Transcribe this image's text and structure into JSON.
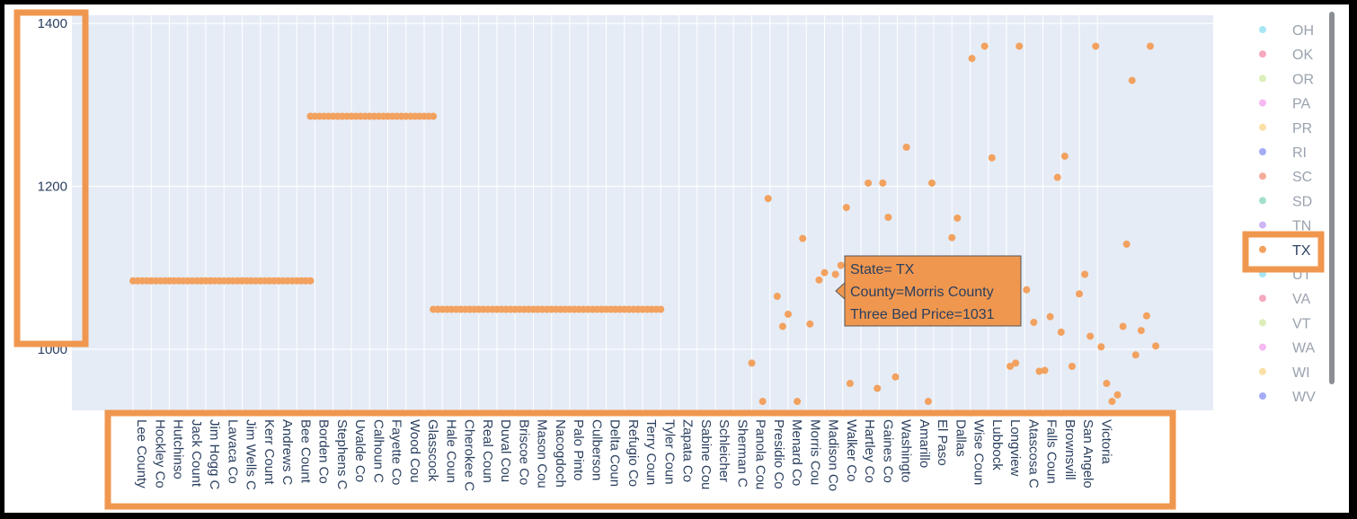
{
  "chart_data": {
    "type": "scatter",
    "ylim": [
      925,
      1410
    ],
    "yticks": [
      1000,
      1200,
      1400
    ],
    "xlabel": "",
    "ylabel": "",
    "title": "",
    "categories": [
      "Lee County",
      "Hockley County",
      "Hutchinson County",
      "Jack County",
      "Jim Hogg County",
      "Lavaca County",
      "Jim Wells County",
      "Kerr County",
      "Andrews County",
      "Bee County",
      "Borden County",
      "Stephens County",
      "Uvalde County",
      "Calhoun County",
      "Fayette County",
      "Wood County",
      "Glasscock County",
      "Hale County",
      "Cherokee County",
      "Real County",
      "Duval County",
      "Briscoe County",
      "Mason County",
      "Nacogdoches County",
      "Palo Pinto County",
      "Culberson County",
      "Delta County",
      "Refugio County",
      "Terry County",
      "Tyler County",
      "Zapata County",
      "Sabine County",
      "Schleicher County",
      "Sherman County",
      "Panola County",
      "Presidio County",
      "Menard County",
      "Morris County",
      "Madison County",
      "Walker County",
      "Hartley County",
      "Gaines County",
      "Washington County",
      "Amarillo",
      "El Paso",
      "Dallas",
      "Wise County",
      "Lubbock",
      "Longview",
      "Atascosa County",
      "Falls County",
      "Brownsville",
      "San Angelo",
      "Victoria"
    ],
    "category_display": [
      "Lee County",
      "Hockley Co",
      "Hutchinso",
      "Jack Count",
      "Jim Hogg C",
      "Lavaca Co",
      "Jim Wells C",
      "Kerr Count",
      "Andrews C",
      "Bee Count",
      "Borden Co",
      "Stephens C",
      "Uvalde Co",
      "Calhoun C",
      "Fayette Co",
      "Wood Cou",
      "Glasscock",
      "Hale Coun",
      "Cherokee C",
      "Real Coun",
      "Duval Cou",
      "Briscoe Co",
      "Mason Cou",
      "Nacogdoch",
      "Palo Pinto",
      "Culberson",
      "Delta Coun",
      "Refugio Co",
      "Terry Coun",
      "Tyler Coun",
      "Zapata Co",
      "Sabine Cou",
      "Schleicher",
      "Sherman C",
      "Panola Cou",
      "Presidio Co",
      "Menard Co",
      "Morris Cou",
      "Madison Co",
      "Walker Co",
      "Hartley Co",
      "Gaines Co",
      "Washingto",
      "Amarillo",
      "El Paso",
      "Dallas",
      "Wise Coun",
      "Lubbock",
      "Longview",
      "Atascosa C",
      "Falls Coun",
      "Brownsvill",
      "San Angelo",
      "Victoria"
    ],
    "hover_label": {
      "state_line": "State= TX",
      "county_line": "County=Morris County",
      "price_line": "Three Bed Price=1031"
    },
    "series": [
      {
        "name": "TX",
        "color": "#f2a15f",
        "segments": [
          {
            "x_start": 0,
            "x_end": 9.75,
            "y": 1084
          },
          {
            "x_start": 9.75,
            "x_end": 16.5,
            "y": 1286
          },
          {
            "x_start": 16.5,
            "x_end": 29.0,
            "y": 1049
          }
        ],
        "points": [
          [
            34.0,
            983
          ],
          [
            34.6,
            936
          ],
          [
            34.9,
            1185
          ],
          [
            35.4,
            1065
          ],
          [
            35.7,
            1028
          ],
          [
            36.0,
            1043
          ],
          [
            36.5,
            936
          ],
          [
            36.8,
            1136
          ],
          [
            37.2,
            1031
          ],
          [
            37.7,
            1085
          ],
          [
            38.0,
            1094
          ],
          [
            38.6,
            1092
          ],
          [
            38.9,
            1103
          ],
          [
            39.2,
            1174
          ],
          [
            39.4,
            958
          ],
          [
            40.4,
            1204
          ],
          [
            40.9,
            952
          ],
          [
            41.2,
            1204
          ],
          [
            41.5,
            1162
          ],
          [
            41.9,
            966
          ],
          [
            42.5,
            1248
          ],
          [
            43.7,
            936
          ],
          [
            43.9,
            1204
          ],
          [
            44.1,
            1097
          ],
          [
            45.0,
            1137
          ],
          [
            45.3,
            1161
          ],
          [
            46.1,
            1357
          ],
          [
            46.8,
            1372
          ],
          [
            47.2,
            1235
          ],
          [
            47.6,
            1099
          ],
          [
            48.2,
            979
          ],
          [
            48.5,
            983
          ],
          [
            48.7,
            1372
          ],
          [
            49.1,
            1073
          ],
          [
            49.5,
            1033
          ],
          [
            49.8,
            973
          ],
          [
            50.1,
            974
          ],
          [
            50.4,
            1040
          ],
          [
            50.8,
            1211
          ],
          [
            51.0,
            1021
          ],
          [
            51.2,
            1237
          ],
          [
            51.6,
            979
          ],
          [
            52.0,
            1068
          ],
          [
            52.3,
            1092
          ],
          [
            52.6,
            1016
          ],
          [
            52.9,
            1372
          ],
          [
            53.2,
            1003
          ],
          [
            53.5,
            958
          ],
          [
            53.8,
            936
          ],
          [
            54.1,
            944
          ],
          [
            54.4,
            1028
          ],
          [
            54.6,
            1129
          ],
          [
            54.9,
            1330
          ],
          [
            55.1,
            993
          ],
          [
            55.4,
            1023
          ],
          [
            55.7,
            1041
          ],
          [
            55.9,
            1372
          ],
          [
            56.2,
            1004
          ]
        ]
      }
    ],
    "legend": {
      "placement": "right",
      "items": [
        {
          "label": "OH",
          "color": "#a8e6f5",
          "active": false
        },
        {
          "label": "OK",
          "color": "#f5a8be",
          "active": false
        },
        {
          "label": "OR",
          "color": "#dcefb8",
          "active": false
        },
        {
          "label": "PA",
          "color": "#f6b8f2",
          "active": false
        },
        {
          "label": "PR",
          "color": "#fbe0a6",
          "active": false
        },
        {
          "label": "RI",
          "color": "#a3acf4",
          "active": false
        },
        {
          "label": "SC",
          "color": "#f4ab9c",
          "active": false
        },
        {
          "label": "SD",
          "color": "#a4e0cb",
          "active": false
        },
        {
          "label": "TN",
          "color": "#ceb6f6",
          "active": false
        },
        {
          "label": "TX",
          "color": "#f2a15f",
          "active": true
        },
        {
          "label": "UT",
          "color": "#a8e6f5",
          "active": false
        },
        {
          "label": "VA",
          "color": "#f5a8be",
          "active": false
        },
        {
          "label": "VT",
          "color": "#dcefb8",
          "active": false
        },
        {
          "label": "WA",
          "color": "#f6b8f2",
          "active": false
        },
        {
          "label": "WI",
          "color": "#fbe0a6",
          "active": false
        },
        {
          "label": "WV",
          "color": "#a3acf4",
          "active": false
        }
      ]
    },
    "grid": true
  },
  "colors": {
    "plot_background": "#e5ecf6",
    "gridline": "#ffffff",
    "highlight_box": "#f0974f",
    "tick_text": "#2a3f5f"
  }
}
